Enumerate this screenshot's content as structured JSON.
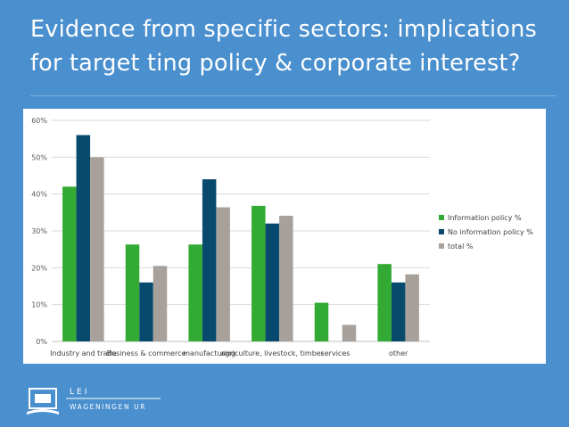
{
  "slide": {
    "title": "Evidence from specific sectors: implications for target ting policy & corporate interest?"
  },
  "logo": {
    "top_text": "LEI",
    "bottom_text": "WAGENINGEN UR"
  },
  "chart_data": {
    "type": "bar",
    "categories": [
      "Industry and trade",
      "Business & commerce",
      "manufacturing",
      "agriculture, livestock, timber",
      "services",
      "other"
    ],
    "series": [
      {
        "name": "Information policy %",
        "color": "#33aa33",
        "values": [
          42,
          26.3,
          26.3,
          36.8,
          10.5,
          21
        ]
      },
      {
        "name": "No information policy %",
        "color": "#08496e",
        "values": [
          56,
          16,
          44,
          32,
          0,
          16
        ]
      },
      {
        "name": "total %",
        "color": "#a8a19b",
        "values": [
          50,
          20.5,
          36.4,
          34.1,
          4.5,
          18.2
        ]
      }
    ],
    "y_ticks": [
      "0%",
      "10%",
      "20%",
      "30%",
      "40%",
      "50%",
      "60%"
    ],
    "ylim": [
      0,
      60
    ],
    "grid": true,
    "legend_position": "right",
    "title": "",
    "xlabel": "",
    "ylabel": ""
  }
}
